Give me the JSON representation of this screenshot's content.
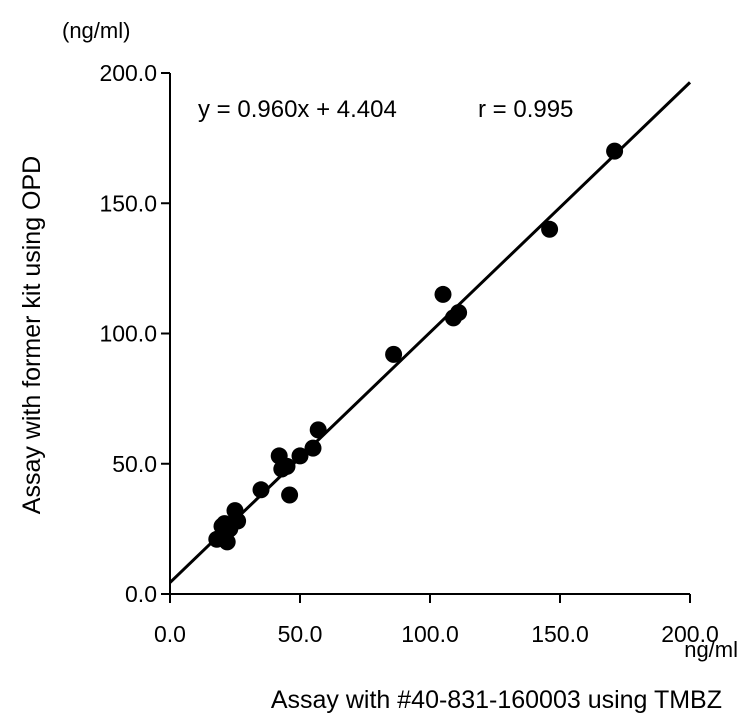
{
  "chart_data": {
    "type": "scatter",
    "title": "",
    "equation": "y = 0.960x + 4.404",
    "correlation": "r = 0.995",
    "xlabel": "Assay with #40-831-160003 using TMBZ",
    "ylabel": "Assay with former kit using OPD",
    "x_unit": "ng/ml",
    "y_unit": "(ng/ml)",
    "xlim": [
      0,
      200
    ],
    "ylim": [
      0,
      200
    ],
    "x_ticks": [
      "0.0",
      "50.0",
      "100.0",
      "150.0",
      "200.0"
    ],
    "y_ticks": [
      "0.0",
      "50.0",
      "100.0",
      "150.0",
      "200.0"
    ],
    "grid": false,
    "regression": {
      "slope": 0.96,
      "intercept": 4.404
    },
    "points": [
      {
        "x": 18,
        "y": 21
      },
      {
        "x": 20,
        "y": 26
      },
      {
        "x": 21,
        "y": 27
      },
      {
        "x": 22,
        "y": 20
      },
      {
        "x": 23,
        "y": 25
      },
      {
        "x": 25,
        "y": 32
      },
      {
        "x": 26,
        "y": 28
      },
      {
        "x": 35,
        "y": 40
      },
      {
        "x": 42,
        "y": 53
      },
      {
        "x": 43,
        "y": 48
      },
      {
        "x": 45,
        "y": 49
      },
      {
        "x": 46,
        "y": 38
      },
      {
        "x": 50,
        "y": 53
      },
      {
        "x": 55,
        "y": 56
      },
      {
        "x": 57,
        "y": 63
      },
      {
        "x": 86,
        "y": 92
      },
      {
        "x": 105,
        "y": 115
      },
      {
        "x": 109,
        "y": 106
      },
      {
        "x": 111,
        "y": 108
      },
      {
        "x": 146,
        "y": 140
      },
      {
        "x": 171,
        "y": 170
      }
    ]
  }
}
